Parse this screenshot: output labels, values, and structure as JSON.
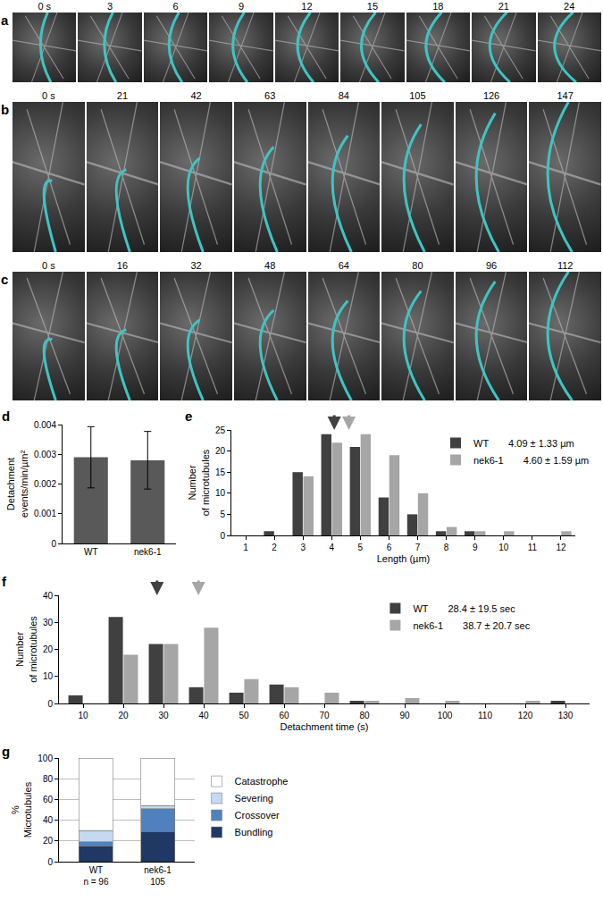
{
  "image_panels": [
    {
      "label": "a",
      "frames": [
        "0 s",
        "3",
        "6",
        "9",
        "12",
        "15",
        "18",
        "21",
        "24"
      ]
    },
    {
      "label": "b",
      "frames": [
        "0 s",
        "21",
        "42",
        "63",
        "84",
        "105",
        "126",
        "147"
      ]
    },
    {
      "label": "c",
      "frames": [
        "0 s",
        "16",
        "32",
        "48",
        "64",
        "80",
        "96",
        "112"
      ]
    }
  ],
  "chart_data": [
    {
      "label": "d",
      "type": "bar",
      "categories": [
        "WT",
        "nek6-1"
      ],
      "values": [
        0.0029,
        0.0028
      ],
      "errors": [
        0.00103,
        0.00097
      ],
      "color": "#595959",
      "y_label": "Detachment events/min/µm²",
      "ylim": [
        0,
        0.004
      ],
      "yticks": [
        0,
        0.001,
        0.002,
        0.003,
        0.004
      ],
      "grid": false
    },
    {
      "label": "e",
      "type": "bar",
      "x": [
        1,
        2,
        3,
        4,
        5,
        6,
        7,
        8,
        9,
        10,
        11,
        12
      ],
      "xlim": [
        0.5,
        12.5
      ],
      "xticks": [
        1,
        2,
        3,
        4,
        5,
        6,
        7,
        8,
        9,
        10,
        11,
        12
      ],
      "x_label": "Length (µm)",
      "y_label": "Number of microtubules",
      "ylim": [
        0,
        25
      ],
      "yticks": [
        0,
        5,
        10,
        15,
        20,
        25
      ],
      "grid": false,
      "legend": "top right",
      "series": [
        {
          "name": "WT",
          "color": "#404040",
          "values": [
            0,
            1,
            15,
            24,
            21,
            9,
            5,
            1,
            1,
            0,
            0,
            0
          ],
          "mean": 4.09,
          "summary": "4.09 ± 1.33 µm"
        },
        {
          "name": "nek6-1",
          "color": "#a6a6a6",
          "values": [
            0,
            0,
            14,
            22,
            24,
            19,
            10,
            2,
            1,
            1,
            0,
            1
          ],
          "mean": 4.6,
          "summary": "4.60 ± 1.59 µm"
        }
      ]
    },
    {
      "label": "f",
      "type": "bar",
      "x": [
        10,
        20,
        30,
        40,
        50,
        60,
        70,
        80,
        90,
        100,
        110,
        120,
        130
      ],
      "xlim": [
        4,
        136
      ],
      "xticks": [
        10,
        20,
        30,
        40,
        50,
        60,
        70,
        80,
        90,
        100,
        110,
        120,
        130
      ],
      "x_label": "Detachment time (s)",
      "y_label": "Number of microtubules",
      "ylim": [
        0,
        40
      ],
      "yticks": [
        0,
        10,
        20,
        30,
        40
      ],
      "grid": false,
      "legend": "top right",
      "series": [
        {
          "name": "WT",
          "color": "#404040",
          "values": [
            3,
            32,
            22,
            6,
            4,
            7,
            0,
            1,
            0,
            0,
            0,
            0,
            1
          ],
          "mean": 28.4,
          "summary": "28.4 ± 19.5 sec"
        },
        {
          "name": "nek6-1",
          "color": "#a6a6a6",
          "values": [
            0,
            18,
            22,
            28,
            9,
            6,
            4,
            1,
            2,
            1,
            0,
            1,
            0
          ],
          "mean": 38.7,
          "summary": "38.7 ± 20.7 sec"
        }
      ]
    },
    {
      "label": "g",
      "type": "bar",
      "stacked": true,
      "categories": [
        "WT",
        "nek6-1"
      ],
      "n_labels": [
        "n = 96",
        "105"
      ],
      "y_label": "% Microtubules",
      "ylim": [
        0,
        100
      ],
      "yticks": [
        0,
        20,
        40,
        60,
        80,
        100
      ],
      "grid": true,
      "legend": "right",
      "series": [
        {
          "name": "Bundling",
          "color": "#1f3864",
          "values": [
            15,
            29
          ]
        },
        {
          "name": "Crossover",
          "color": "#4f81bd",
          "values": [
            4,
            22
          ]
        },
        {
          "name": "Severing",
          "color": "#c5d9f1",
          "values": [
            11,
            3
          ]
        },
        {
          "name": "Catastrophe",
          "color": "#ffffff",
          "values": [
            70,
            46
          ]
        }
      ]
    }
  ]
}
